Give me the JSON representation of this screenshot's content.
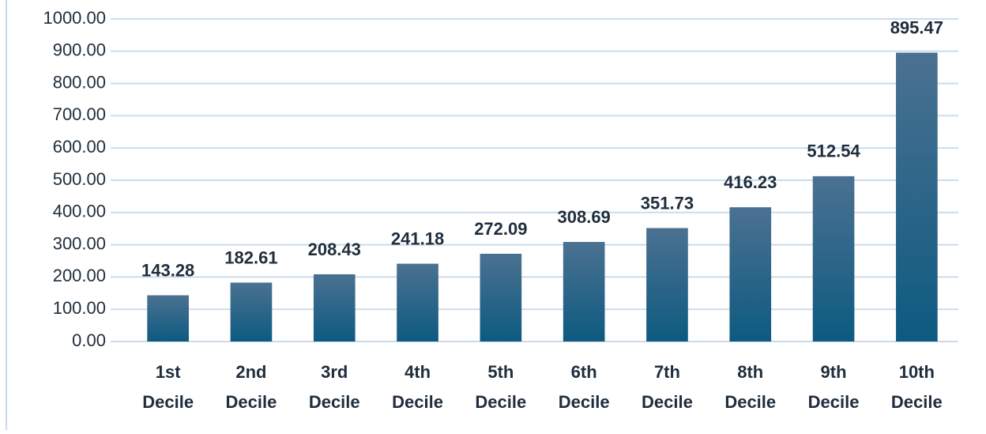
{
  "chart_data": {
    "type": "bar",
    "categories": [
      "1st Decile",
      "2nd Decile",
      "3rd Decile",
      "4th Decile",
      "5th Decile",
      "6th Decile",
      "7th Decile",
      "8th Decile",
      "9th Decile",
      "10th Decile"
    ],
    "values": [
      143.28,
      182.61,
      208.43,
      241.18,
      272.09,
      308.69,
      351.73,
      416.23,
      512.54,
      895.47
    ],
    "color": "#0f5a80",
    "ylim": [
      0,
      1000
    ],
    "yticks": [
      {
        "value": 0,
        "label": "0.00"
      },
      {
        "value": 100,
        "label": "100.00"
      },
      {
        "value": 200,
        "label": "200.00"
      },
      {
        "value": 300,
        "label": "300.00"
      },
      {
        "value": 400,
        "label": "400.00"
      },
      {
        "value": 500,
        "label": "500.00"
      },
      {
        "value": 600,
        "label": "600.00"
      },
      {
        "value": 700,
        "label": "700.00"
      },
      {
        "value": 800,
        "label": "800.00"
      },
      {
        "value": 900,
        "label": "900.00"
      },
      {
        "value": 1000,
        "label": "1000.00"
      }
    ],
    "grid": true
  }
}
